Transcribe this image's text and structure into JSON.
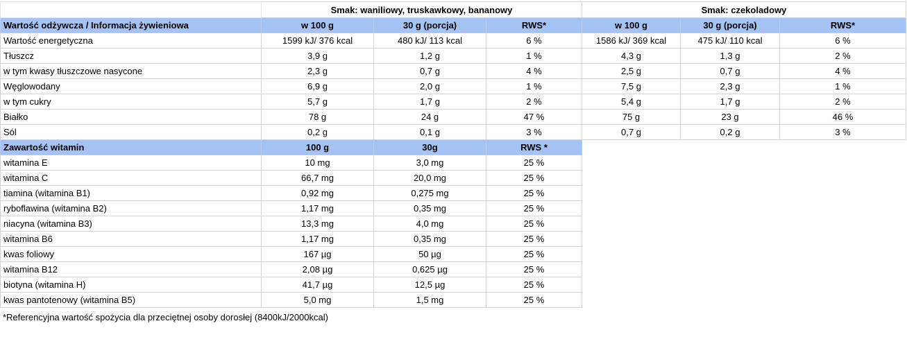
{
  "group_headers": {
    "flavor_a": "Smak: waniliowy, truskawkowy, bananowy",
    "flavor_b": "Smak: czekoladowy"
  },
  "nutrition_header": [
    "Wartość odżywcza / Informacja żywieniowa",
    "w 100 g",
    "30 g (porcja)",
    "RWS*",
    "w 100 g",
    "30 g (porcja)",
    "RWS*"
  ],
  "nutrition_rows": [
    [
      "Wartość energetyczna",
      "1599 kJ/ 376 kcal",
      "480 kJ/ 113 kcal",
      "6 %",
      "1586 kJ/ 369 kcal",
      "475 kJ/ 110 kcal",
      "6 %"
    ],
    [
      "Tłuszcz",
      "3,9 g",
      "1,2 g",
      "1 %",
      "4,3 g",
      "1,3 g",
      "2 %"
    ],
    [
      "w tym kwasy tłuszczowe nasycone",
      "2,3 g",
      "0,7 g",
      "4 %",
      "2,5 g",
      "0,7 g",
      "4 %"
    ],
    [
      "Węglowodany",
      "6,9 g",
      "2,0 g",
      "1 %",
      "7,5 g",
      "2,3 g",
      "1 %"
    ],
    [
      "w tym cukry",
      "5,7 g",
      "1,7 g",
      "2 %",
      "5,4 g",
      "1,7 g",
      "2 %"
    ],
    [
      "Białko",
      "78 g",
      "24 g",
      "47 %",
      "75 g",
      "23 g",
      "46 %"
    ],
    [
      "Sól",
      "0,2 g",
      "0,1 g",
      "3 %",
      "0,7 g",
      "0,2 g",
      "3 %"
    ]
  ],
  "vitamin_header": [
    "Zawartość witamin",
    "100 g",
    "30g",
    "RWS *"
  ],
  "vitamin_rows": [
    [
      "witamina E",
      "10 mg",
      "3,0 mg",
      "25 %"
    ],
    [
      "witamina C",
      "66,7 mg",
      "20,0 mg",
      "25 %"
    ],
    [
      "tiamina (witamina B1)",
      "0,92 mg",
      "0,275 mg",
      "25 %"
    ],
    [
      "ryboflawina (witamina B2)",
      "1,17 mg",
      "0,35 mg",
      "25 %"
    ],
    [
      "niacyna (witamina B3)",
      "13,3 mg",
      "4,0 mg",
      "25 %"
    ],
    [
      "witamina B6",
      "1,17 mg",
      "0,35 mg",
      "25 %"
    ],
    [
      "kwas foliowy",
      "167 µg",
      "50 µg",
      "25 %"
    ],
    [
      "witamina B12",
      "2,08 µg",
      "0,625 µg",
      "25 %"
    ],
    [
      "biotyna (witamina H)",
      "41,7 µg",
      "12,5 µg",
      "25 %"
    ],
    [
      "kwas pantotenowy (witamina B5)",
      "5,0 mg",
      "1,5 mg",
      "25 %"
    ]
  ],
  "footnote": "*Referencyjna wartość spożycia dla przeciętnej osoby dorosłej (8400kJ/2000kcal)",
  "colors": {
    "header_fill": "#a4c2f4",
    "grid": "#d4d4d4"
  }
}
